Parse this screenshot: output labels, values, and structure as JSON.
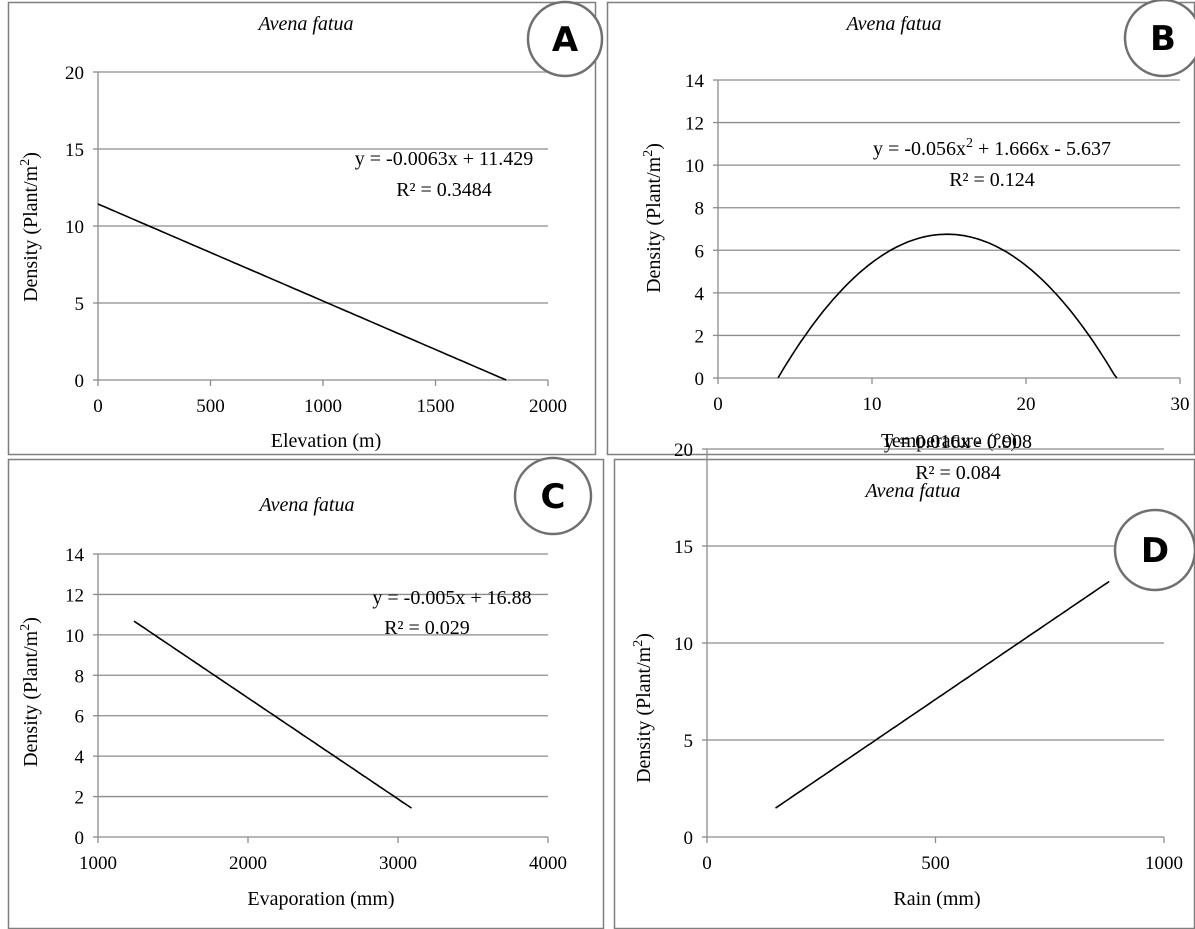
{
  "chart_data": [
    {
      "type": "line",
      "panel": "A",
      "title": "Avena fatua",
      "xlabel": "Elevation (m)",
      "ylabel_main": "Density (Plant/m",
      "ylabel_sup": "2",
      "ylabel_end": ")",
      "xlim": [
        0,
        2000
      ],
      "ylim": [
        0,
        20
      ],
      "xticks": [
        0,
        500,
        1000,
        1500,
        2000
      ],
      "yticks": [
        0,
        5,
        10,
        15,
        20
      ],
      "grid": true,
      "equation": "y = -0.0063x + 11.429",
      "r2": "R² = 0.3484",
      "fit": {
        "kind": "linear",
        "coef": [
          11.429,
          -0.0063
        ],
        "x_range": [
          0,
          1814
        ]
      }
    },
    {
      "type": "line",
      "panel": "B",
      "title": "Avena fatua",
      "xlabel": "Temperature (°c)",
      "ylabel_main": "Density (Plant/m",
      "ylabel_sup": "2",
      "ylabel_end": ")",
      "xlim": [
        0,
        30
      ],
      "ylim": [
        0,
        14
      ],
      "xticks": [
        0,
        10,
        20,
        30
      ],
      "yticks": [
        0,
        2,
        4,
        6,
        8,
        10,
        12,
        14
      ],
      "grid": true,
      "equation_main": "y = -0.056x",
      "equation_sup": "2",
      "equation_end": " + 1.666x - 5.637",
      "r2": "R² = 0.124",
      "fit": {
        "kind": "quadratic",
        "coef": [
          -5.637,
          1.666,
          -0.056
        ],
        "x_range": [
          3.9,
          25.9
        ]
      }
    },
    {
      "type": "line",
      "panel": "C",
      "title": "Avena fatua",
      "xlabel": "Evaporation (mm)",
      "ylabel_main": "Density (Plant/m",
      "ylabel_sup": "2",
      "ylabel_end": ")",
      "xlim": [
        1000,
        4000
      ],
      "ylim": [
        0,
        14
      ],
      "xticks": [
        1000,
        2000,
        3000,
        4000
      ],
      "yticks": [
        0,
        2,
        4,
        6,
        8,
        10,
        12,
        14
      ],
      "grid": true,
      "equation": "y = -0.005x + 16.88",
      "r2": "R² = 0.029",
      "fit": {
        "kind": "linear",
        "coef": [
          16.88,
          -0.005
        ],
        "x_range": [
          1240,
          3090
        ]
      }
    },
    {
      "type": "line",
      "panel": "D",
      "title": "Avena fatua",
      "xlabel": "Rain (mm)",
      "ylabel_main": "Density (Plant/m",
      "ylabel_sup": "2",
      "ylabel_end": ")",
      "xlim": [
        0,
        1000
      ],
      "ylim": [
        0,
        20
      ],
      "xticks": [
        0,
        500,
        1000
      ],
      "yticks": [
        0,
        5,
        10,
        15,
        20
      ],
      "grid": true,
      "equation": "y = 0.016x - 0.908",
      "r2": "R² = 0.084",
      "fit": {
        "kind": "linear",
        "coef": [
          -0.908,
          0.016
        ],
        "x_range": [
          150,
          880
        ]
      }
    }
  ]
}
